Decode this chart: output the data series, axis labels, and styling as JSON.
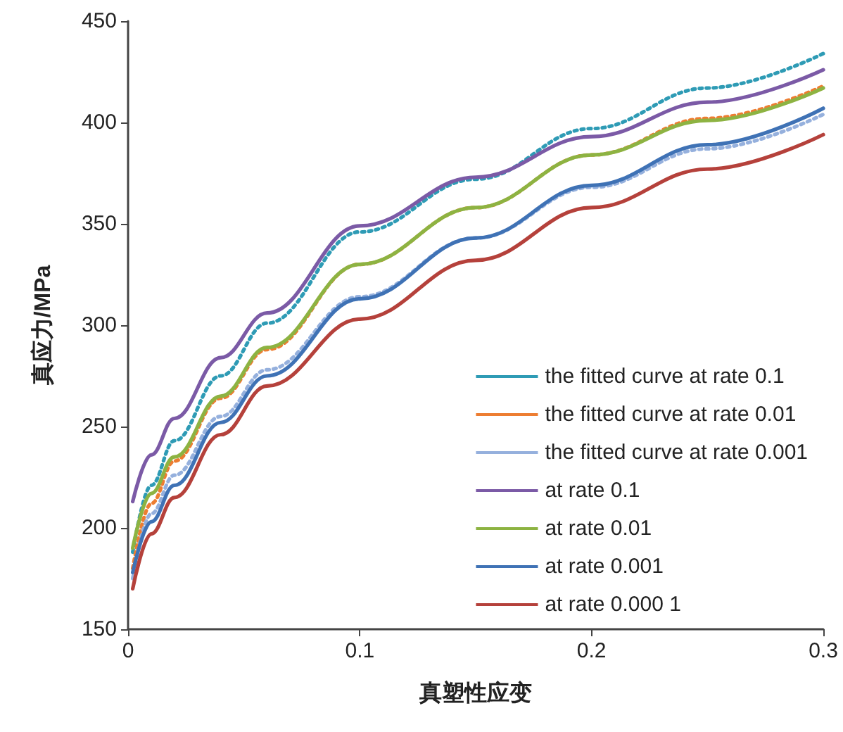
{
  "chart_data": {
    "type": "line",
    "xlabel": "真塑性应变",
    "ylabel": "真应力/MPa",
    "x": [
      0.002,
      0.01,
      0.02,
      0.04,
      0.06,
      0.1,
      0.15,
      0.2,
      0.25,
      0.3
    ],
    "xlim": [
      0,
      0.3
    ],
    "xticks": [
      0,
      0.1,
      0.2,
      0.3
    ],
    "ylim": [
      150,
      450
    ],
    "yticks": [
      150,
      200,
      250,
      300,
      350,
      400,
      450
    ],
    "grid": false,
    "legend": "bottom right",
    "marker": "none",
    "series": [
      {
        "name": "the fitted curve at rate 0.1",
        "color": "#2e9bb5",
        "line_style": "dotted",
        "values": [
          188,
          221,
          243,
          275,
          301,
          346,
          372,
          397,
          417,
          434
        ]
      },
      {
        "name": "the fitted curve at rate 0.01",
        "color": "#ed7d31",
        "line_style": "dotted",
        "values": [
          180,
          212,
          233,
          264,
          288,
          330,
          358,
          384,
          402,
          418
        ]
      },
      {
        "name": "the fitted curve at rate 0.001",
        "color": "#95b0dd",
        "line_style": "dotted",
        "values": [
          175,
          207,
          226,
          255,
          278,
          314,
          343,
          368,
          387,
          404
        ]
      },
      {
        "name": "at rate 0.1",
        "color": "#7b5aa6",
        "line_style": "solid",
        "values": [
          213,
          236,
          254,
          284,
          306,
          349,
          373,
          393,
          410,
          426
        ]
      },
      {
        "name": "at rate 0.01",
        "color": "#8db342",
        "line_style": "solid",
        "values": [
          190,
          217,
          235,
          265,
          289,
          330,
          358,
          384,
          401,
          417
        ]
      },
      {
        "name": "at rate 0.001",
        "color": "#3f72b5",
        "line_style": "solid",
        "values": [
          178,
          203,
          221,
          252,
          275,
          313,
          343,
          369,
          389,
          407
        ]
      },
      {
        "name": "at rate 0.000 1",
        "color": "#b5413b",
        "line_style": "solid",
        "values": [
          170,
          197,
          215,
          246,
          270,
          303,
          332,
          358,
          377,
          394
        ]
      }
    ]
  }
}
